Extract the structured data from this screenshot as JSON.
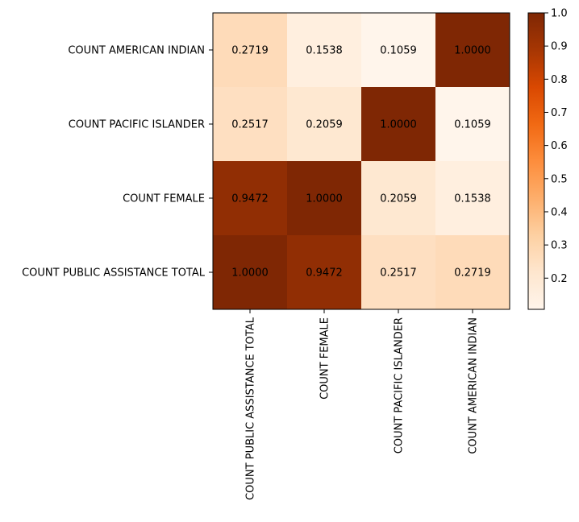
{
  "chart_data": {
    "type": "heatmap",
    "title": "",
    "xlabel": "",
    "ylabel": "",
    "x_categories": [
      "COUNT PUBLIC ASSISTANCE TOTAL",
      "COUNT FEMALE",
      "COUNT PACIFIC ISLANDER",
      "COUNT AMERICAN INDIAN"
    ],
    "y_categories_top_to_bottom": [
      "COUNT AMERICAN INDIAN",
      "COUNT PACIFIC ISLANDER",
      "COUNT FEMALE",
      "COUNT PUBLIC ASSISTANCE TOTAL"
    ],
    "values_top_to_bottom": [
      [
        0.2719,
        0.1538,
        0.1059,
        1.0
      ],
      [
        0.2517,
        0.2059,
        1.0,
        0.1059
      ],
      [
        0.9472,
        1.0,
        0.2059,
        0.1538
      ],
      [
        1.0,
        0.9472,
        0.2517,
        0.2719
      ]
    ],
    "value_labels_top_to_bottom": [
      [
        "0.2719",
        "0.1538",
        "0.1059",
        "1.0000"
      ],
      [
        "0.2517",
        "0.2059",
        "1.0000",
        "0.1059"
      ],
      [
        "0.9472",
        "1.0000",
        "0.2059",
        "0.1538"
      ],
      [
        "1.0000",
        "0.9472",
        "0.2517",
        "0.2719"
      ]
    ],
    "colormap": "Oranges",
    "colormap_stops": [
      "#fff5eb",
      "#fee6ce",
      "#fdd0a2",
      "#fdae6b",
      "#fd8d3c",
      "#f16913",
      "#d94801",
      "#a63603",
      "#7f2704"
    ],
    "color_range": [
      0.1059,
      1.0
    ],
    "colorbar": {
      "ticks": [
        0.2,
        0.3,
        0.4,
        0.5,
        0.6,
        0.7,
        0.8,
        0.9,
        1.0
      ],
      "tick_labels": [
        "0.2",
        "0.3",
        "0.4",
        "0.5",
        "0.6",
        "0.7",
        "0.8",
        "0.9",
        "1.0"
      ]
    }
  }
}
